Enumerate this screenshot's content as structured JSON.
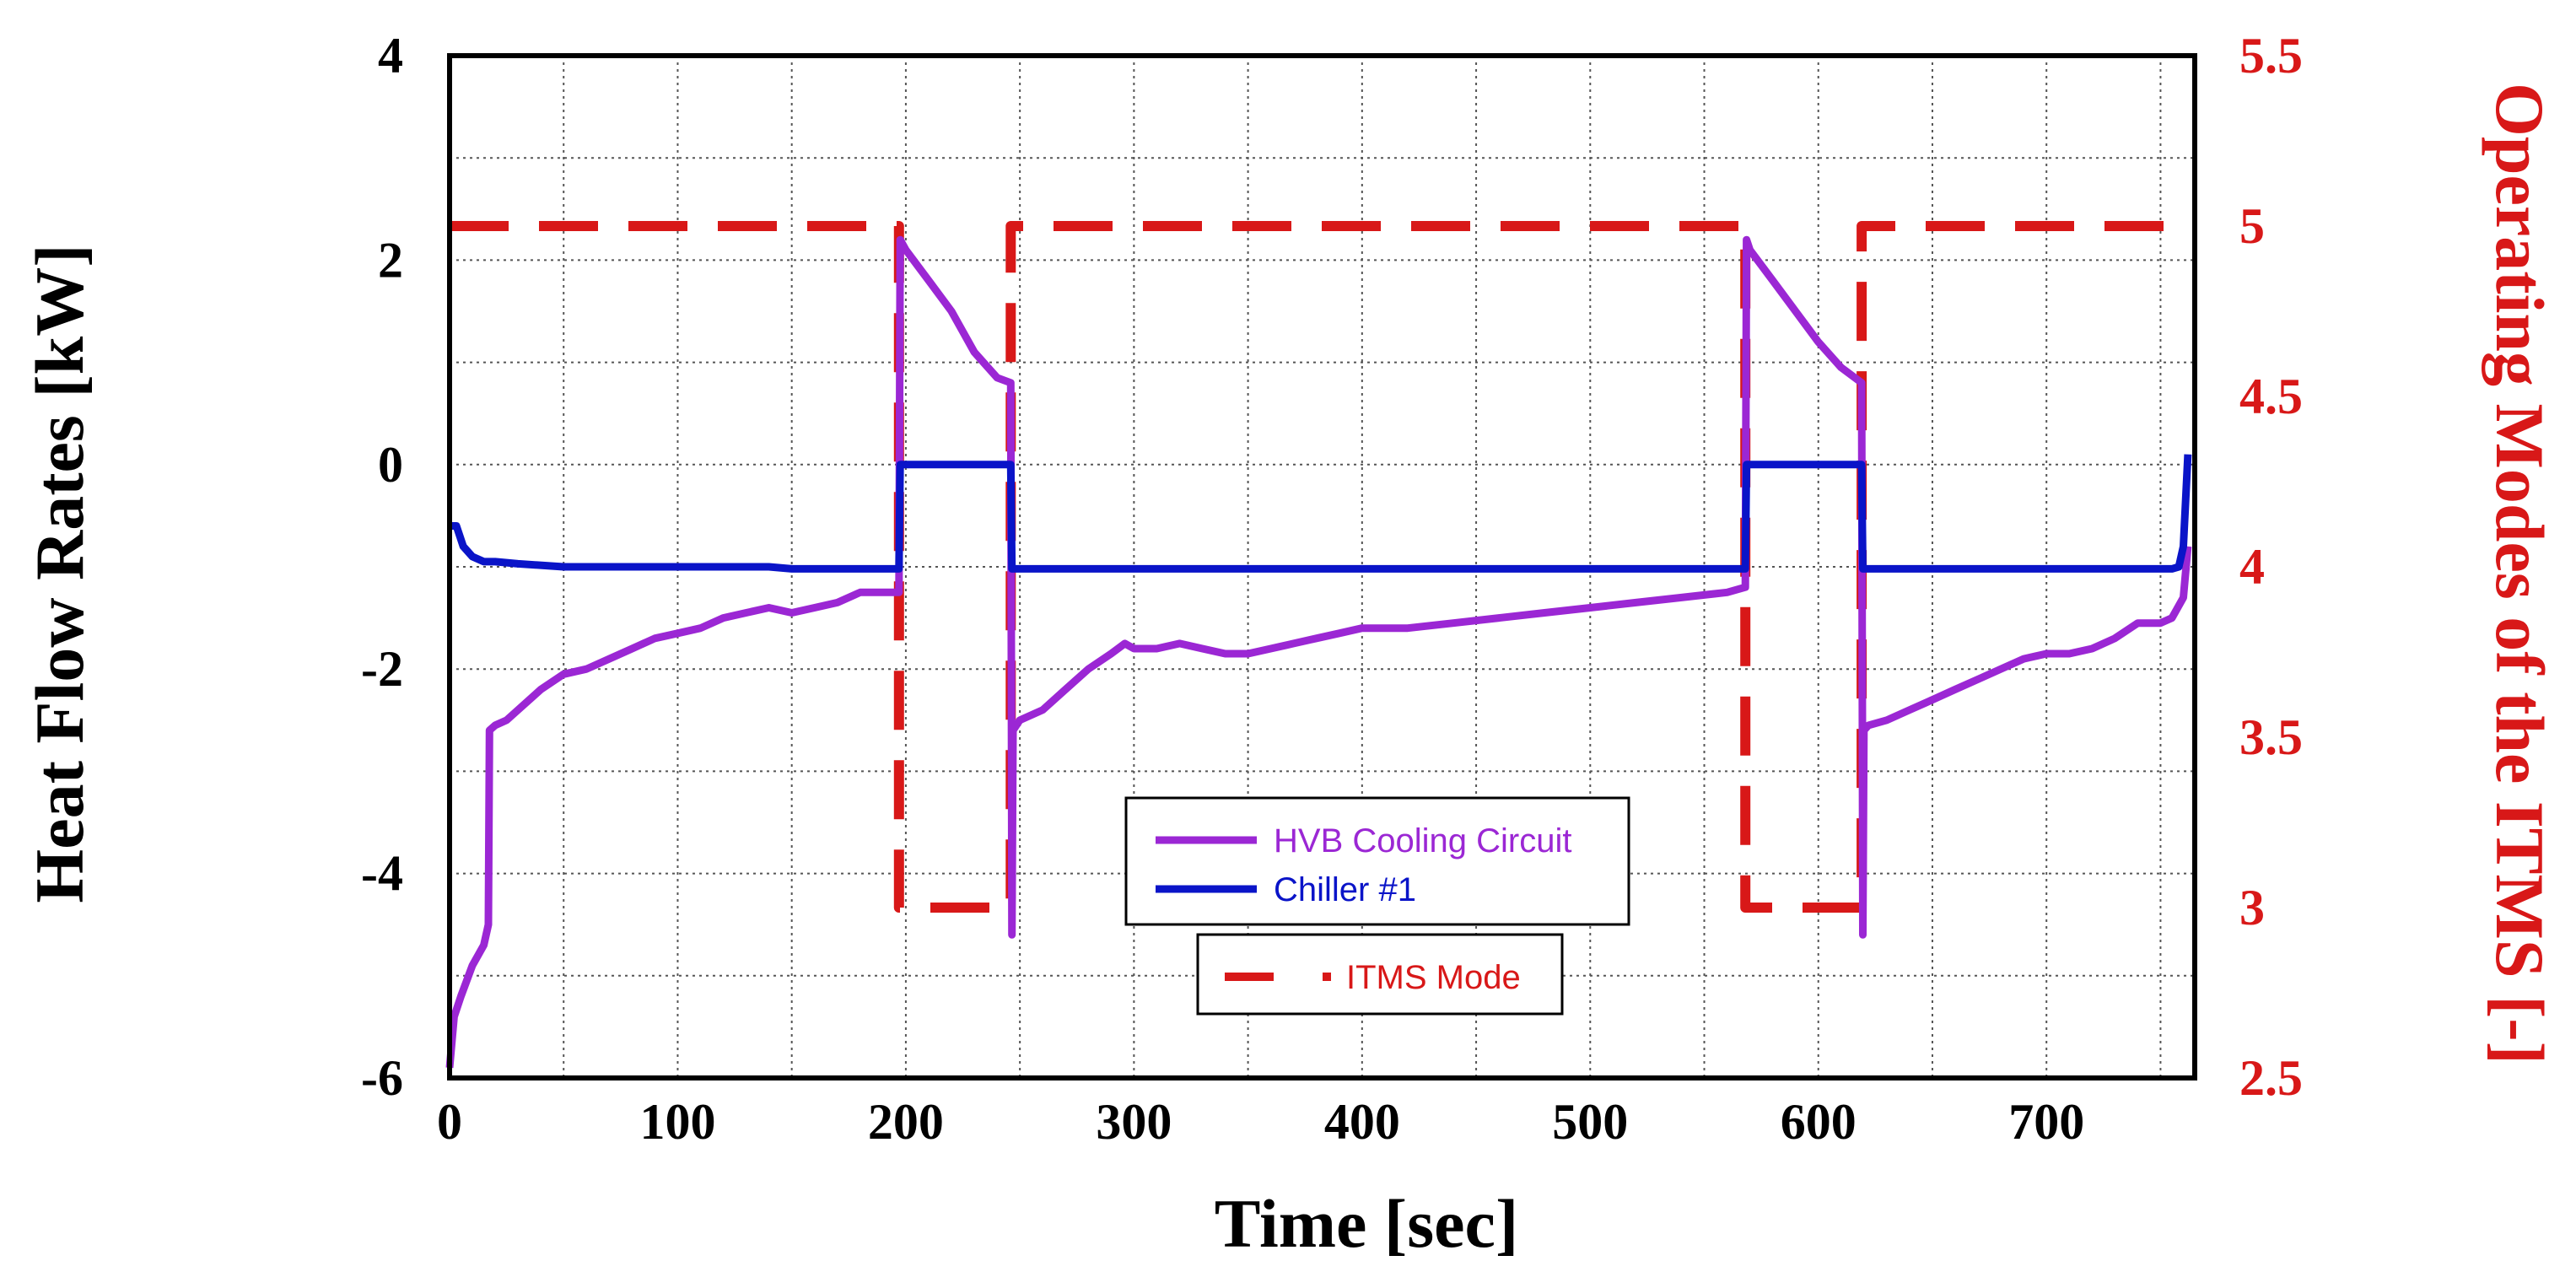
{
  "chart_data": {
    "type": "line",
    "title": "",
    "xlabel": "Time [sec]",
    "ylabel": "Heat Flow Rates [kW]",
    "y2label": "Operating Modes of the ITMS [-]",
    "xlim": [
      0,
      765
    ],
    "ylim": [
      -6,
      4
    ],
    "y2lim": [
      2.5,
      5.5
    ],
    "xticks": [
      0,
      100,
      200,
      300,
      400,
      500,
      600,
      700
    ],
    "xtick_labels": [
      "0",
      "100",
      "200",
      "300",
      "400",
      "500",
      "600",
      "700"
    ],
    "yticks": [
      -6,
      -4,
      -2,
      0,
      2,
      4
    ],
    "ytick_labels": [
      "-6",
      "-4",
      "-2",
      "0",
      "2",
      "4"
    ],
    "y2ticks": [
      2.5,
      3,
      3.5,
      4,
      4.5,
      5,
      5.5
    ],
    "y2tick_labels": [
      "2.5",
      "3",
      "3.5",
      "4",
      "4.5",
      "5",
      "5.5"
    ],
    "grid": true,
    "colors": {
      "hvb": "#9b27d4",
      "chiller": "#0a14c8",
      "itms": "#d81818",
      "y2axis": "#d81818"
    },
    "series": [
      {
        "name": "HVB Cooling Circuit",
        "axis": "left",
        "style": "solid",
        "x": [
          0,
          2,
          5,
          10,
          15,
          17,
          17.5,
          20,
          25,
          30,
          40,
          50,
          60,
          70,
          80,
          90,
          100,
          110,
          120,
          130,
          140,
          150,
          160,
          170,
          180,
          190,
          197,
          197.5,
          200,
          210,
          220,
          230,
          240,
          246,
          246.5,
          247,
          250,
          260,
          270,
          280,
          290,
          296,
          300,
          310,
          320,
          330,
          340,
          350,
          360,
          370,
          380,
          390,
          400,
          420,
          440,
          460,
          480,
          500,
          520,
          540,
          560,
          568,
          568.5,
          570,
          580,
          590,
          600,
          610,
          619,
          619.5,
          620,
          622,
          630,
          640,
          650,
          660,
          670,
          680,
          690,
          700,
          710,
          720,
          730,
          740,
          750,
          755,
          760,
          762
        ],
        "values": [
          -5.9,
          -5.4,
          -5.2,
          -4.9,
          -4.7,
          -4.5,
          -2.6,
          -2.55,
          -2.5,
          -2.4,
          -2.2,
          -2.05,
          -2.0,
          -1.9,
          -1.8,
          -1.7,
          -1.65,
          -1.6,
          -1.5,
          -1.45,
          -1.4,
          -1.45,
          -1.4,
          -1.35,
          -1.25,
          -1.25,
          -1.25,
          2.2,
          2.1,
          1.8,
          1.5,
          1.1,
          0.85,
          0.8,
          -4.6,
          -2.6,
          -2.5,
          -2.4,
          -2.2,
          -2.0,
          -1.85,
          -1.75,
          -1.8,
          -1.8,
          -1.75,
          -1.8,
          -1.85,
          -1.85,
          -1.8,
          -1.75,
          -1.7,
          -1.65,
          -1.6,
          -1.6,
          -1.55,
          -1.5,
          -1.45,
          -1.4,
          -1.35,
          -1.3,
          -1.25,
          -1.2,
          2.2,
          2.1,
          1.8,
          1.5,
          1.2,
          0.95,
          0.8,
          -4.6,
          -2.6,
          -2.55,
          -2.5,
          -2.4,
          -2.3,
          -2.2,
          -2.1,
          -2.0,
          -1.9,
          -1.85,
          -1.85,
          -1.8,
          -1.7,
          -1.55,
          -1.55,
          -1.5,
          -1.3,
          -0.8
        ]
      },
      {
        "name": "Chiller #1",
        "axis": "left",
        "style": "solid",
        "x": [
          0,
          3,
          6,
          10,
          15,
          20,
          30,
          50,
          100,
          140,
          150,
          197,
          197.5,
          200,
          246,
          246.5,
          250,
          300,
          400,
          500,
          568,
          568.5,
          570,
          619,
          619.5,
          622,
          700,
          755,
          758,
          760,
          762
        ],
        "values": [
          -0.6,
          -0.6,
          -0.8,
          -0.9,
          -0.95,
          -0.95,
          -0.97,
          -1.0,
          -1.0,
          -1.0,
          -1.02,
          -1.02,
          0.0,
          0.0,
          0.0,
          -1.02,
          -1.02,
          -1.02,
          -1.02,
          -1.02,
          -1.02,
          0.0,
          0.0,
          0.0,
          -1.02,
          -1.02,
          -1.02,
          -1.02,
          -1.0,
          -0.8,
          0.1
        ]
      },
      {
        "name": "ITMS Mode",
        "axis": "right",
        "style": "dashed",
        "x": [
          0,
          197,
          197,
          246,
          246,
          568,
          568,
          619,
          619,
          765
        ],
        "values": [
          5,
          5,
          3,
          3,
          5,
          5,
          3,
          3,
          5,
          5
        ]
      }
    ],
    "legend": [
      {
        "label": "HVB Cooling Circuit",
        "series": 0
      },
      {
        "label": "Chiller #1",
        "series": 1
      }
    ],
    "legend2": [
      {
        "label": "ITMS Mode",
        "series": 2
      }
    ],
    "legend_position": "lower-center"
  }
}
